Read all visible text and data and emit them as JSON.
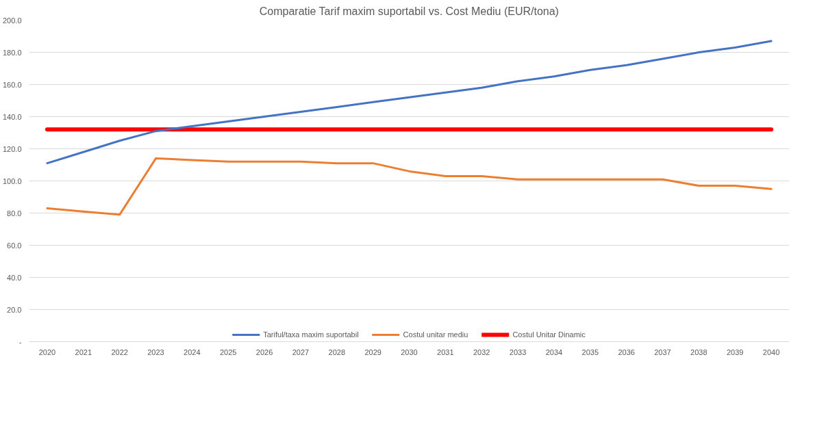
{
  "chart_data": {
    "type": "line",
    "title": "Comparatie Tarif maxim suportabil vs. Cost Mediu (EUR/tona)",
    "categories": [
      "2020",
      "2021",
      "2022",
      "2023",
      "2024",
      "2025",
      "2026",
      "2027",
      "2028",
      "2029",
      "2030",
      "2031",
      "2032",
      "2033",
      "2034",
      "2035",
      "2036",
      "2037",
      "2038",
      "2039",
      "2040"
    ],
    "series": [
      {
        "name": "Tariful/taxa maxim suportabil",
        "color": "#4472c4",
        "values": [
          111,
          118,
          125,
          131,
          134,
          137,
          140,
          143,
          146,
          149,
          152,
          155,
          158,
          162,
          165,
          169,
          172,
          176,
          180,
          183,
          187
        ]
      },
      {
        "name": "Costul unitar mediu",
        "color": "#ed7d31",
        "values": [
          83,
          81,
          79,
          114,
          113,
          112,
          112,
          112,
          111,
          111,
          106,
          103,
          103,
          101,
          101,
          101,
          101,
          101,
          97,
          97,
          95
        ]
      },
      {
        "name": "Costul Unitar Dinamic",
        "color": "#ff0000",
        "values": [
          132,
          132,
          132,
          132,
          132,
          132,
          132,
          132,
          132,
          132,
          132,
          132,
          132,
          132,
          132,
          132,
          132,
          132,
          132,
          132,
          132
        ]
      }
    ],
    "ylim": [
      0,
      200
    ],
    "yticks": [
      {
        "value": 0,
        "label": "-"
      },
      {
        "value": 20,
        "label": "20.0"
      },
      {
        "value": 40,
        "label": "40.0"
      },
      {
        "value": 60,
        "label": "60.0"
      },
      {
        "value": 80,
        "label": "80.0"
      },
      {
        "value": 100,
        "label": "100.0"
      },
      {
        "value": 120,
        "label": "120.0"
      },
      {
        "value": 140,
        "label": "140.0"
      },
      {
        "value": 160,
        "label": "160.0"
      },
      {
        "value": 180,
        "label": "180.0"
      },
      {
        "value": 200,
        "label": "200.0"
      }
    ],
    "grid": "y",
    "legend": "bottom",
    "marker": "none",
    "line_style": "solid"
  }
}
